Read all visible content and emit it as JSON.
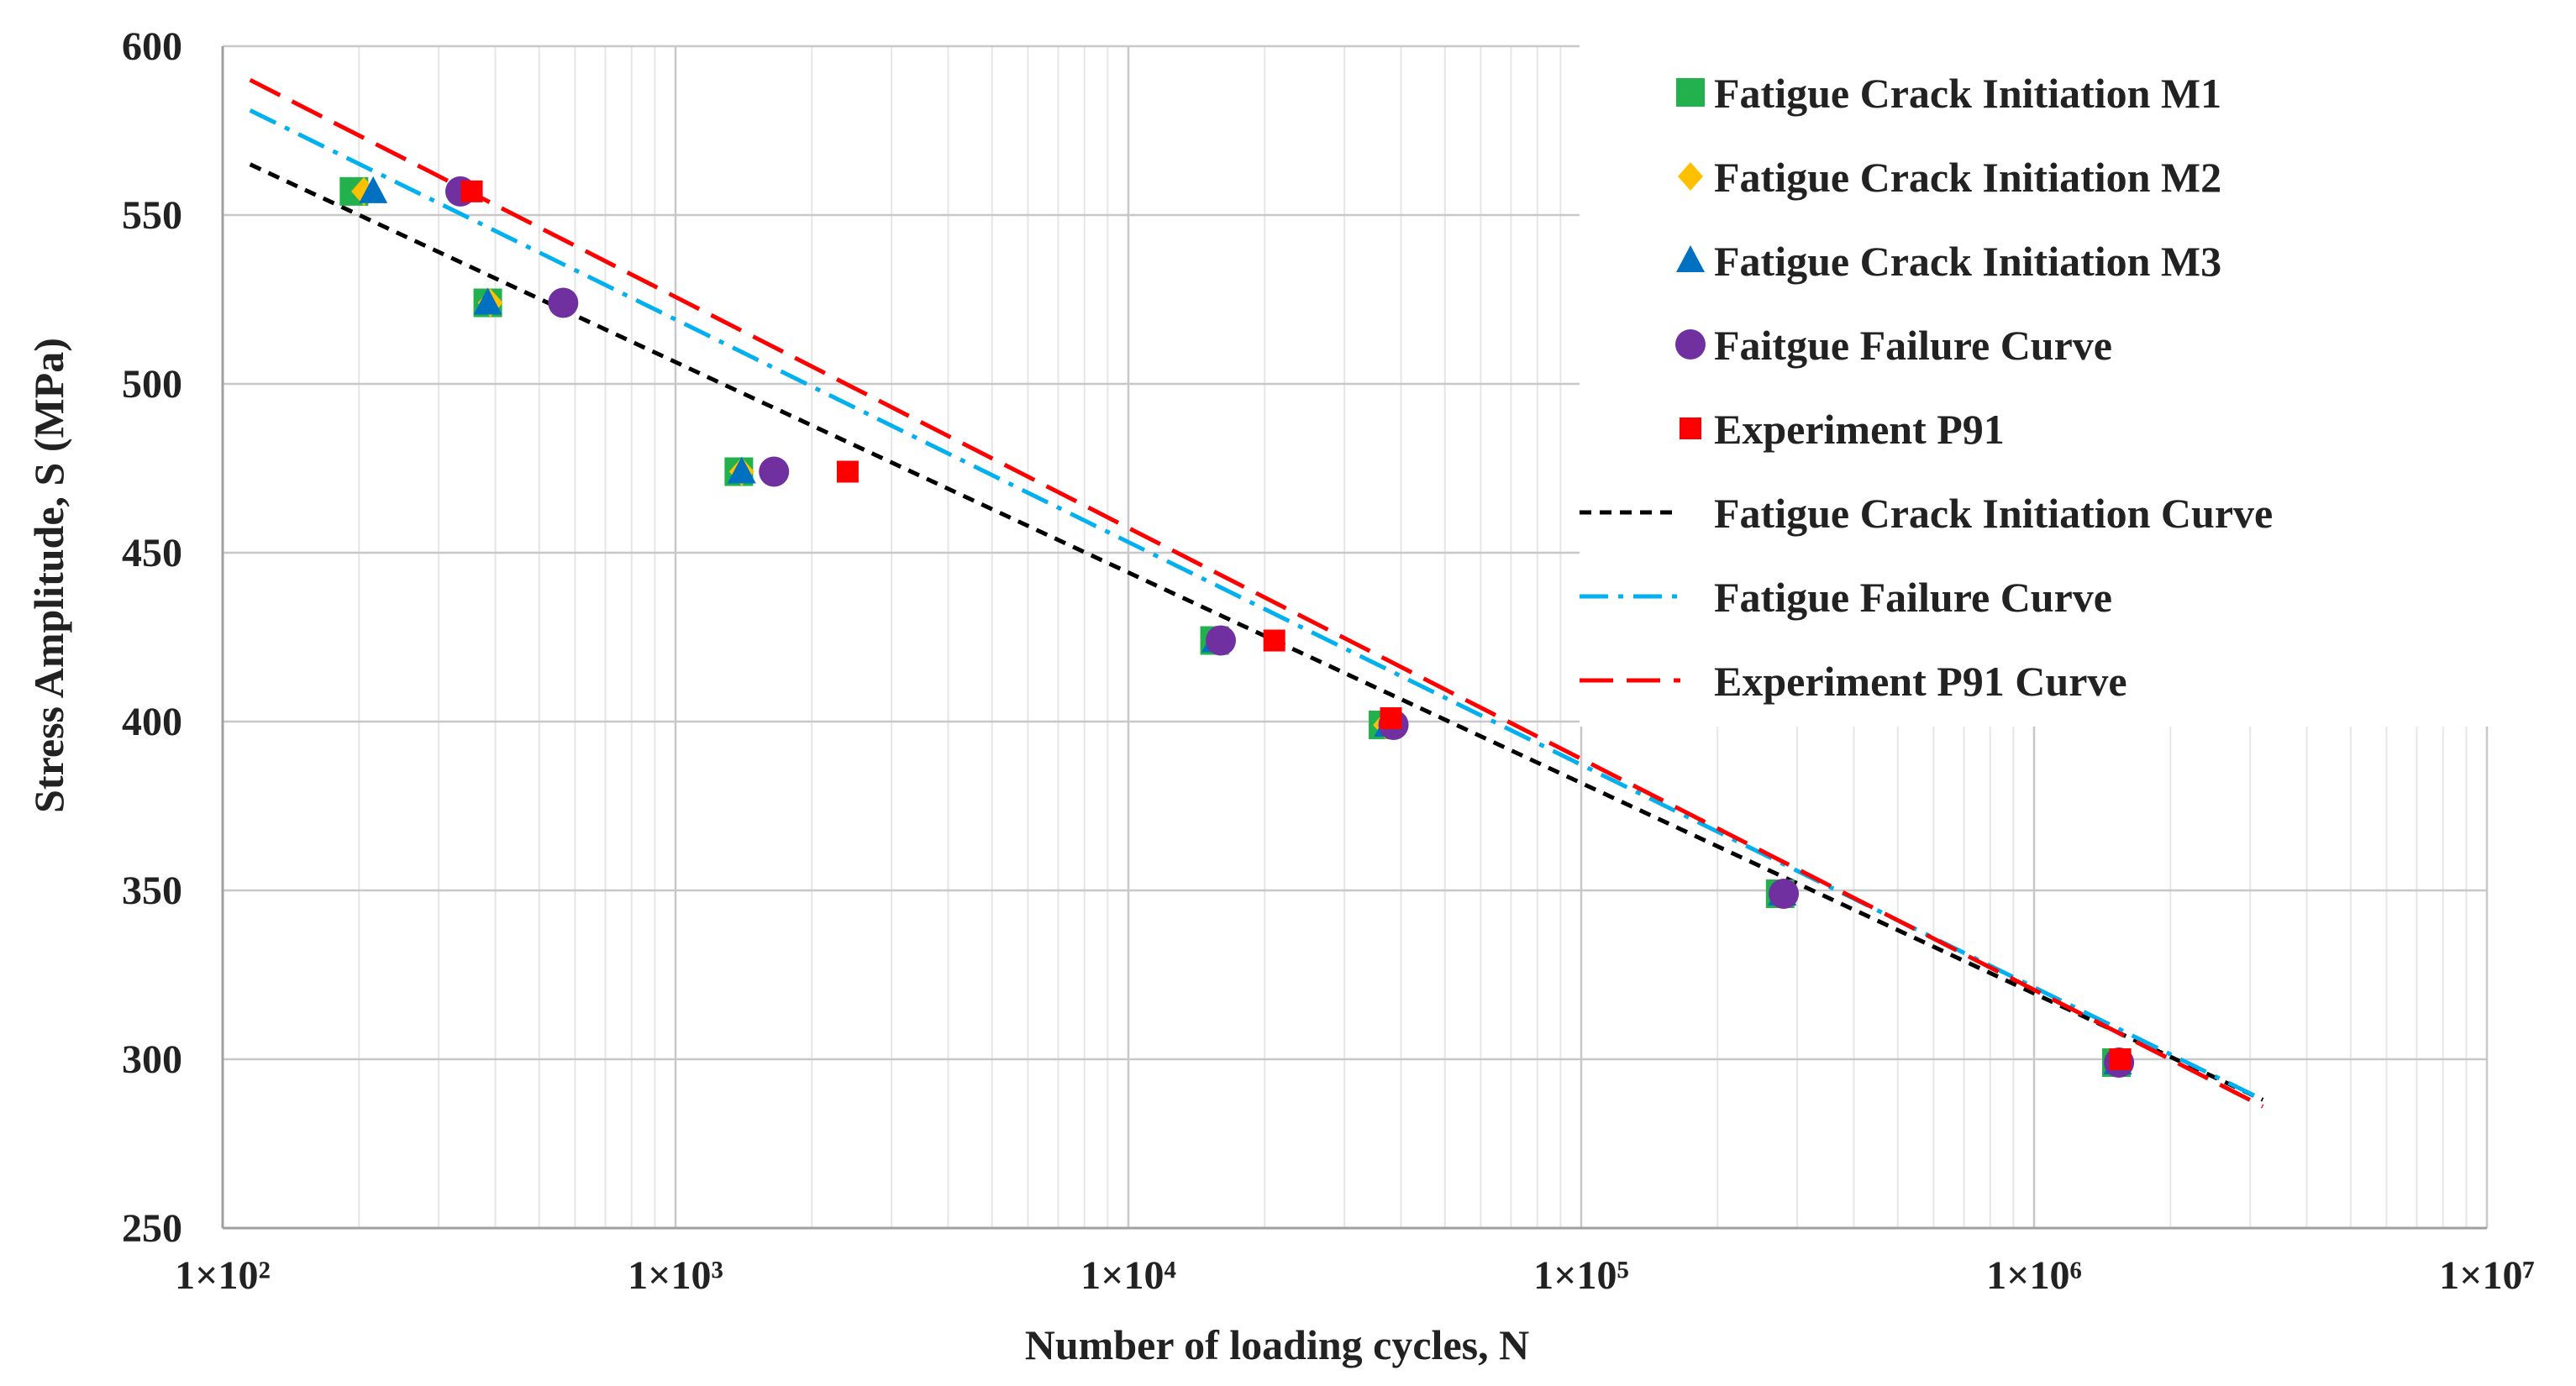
{
  "chart_data": {
    "type": "scatter",
    "title": "",
    "xlabel": "Number of loading cycles, N",
    "ylabel": "Stress Amplitude, S (MPa)",
    "xscale": "log",
    "xlim": [
      100,
      10000000
    ],
    "ylim": [
      250,
      600
    ],
    "grid": true,
    "legend_position": "top-right",
    "x_tick_labels": [
      "1×10²",
      "1×10³",
      "1×10⁴",
      "1×10⁵",
      "1×10⁶",
      "1×10⁷"
    ],
    "y_tick_labels": [
      "250",
      "300",
      "350",
      "400",
      "450",
      "500",
      "550",
      "600"
    ],
    "series": [
      {
        "name": "Fatigue Crack Initiation M1",
        "kind": "points",
        "marker": "square",
        "color": "#22b14c",
        "points": [
          [
            195,
            557
          ],
          [
            385,
            524
          ],
          [
            1380,
            474
          ],
          [
            15500,
            424
          ],
          [
            36500,
            399
          ],
          [
            275000,
            349
          ],
          [
            1520000,
            299
          ]
        ]
      },
      {
        "name": "Fatigue Crack Initiation M2",
        "kind": "points",
        "marker": "diamond",
        "color": "#ffc000",
        "points": [
          [
            205,
            557
          ],
          [
            390,
            524
          ],
          [
            1400,
            474
          ],
          [
            15800,
            424
          ],
          [
            37000,
            399
          ],
          [
            280000,
            349
          ],
          [
            1540000,
            299
          ]
        ]
      },
      {
        "name": "Fatigue Crack Initiation M3",
        "kind": "points",
        "marker": "triangle",
        "color": "#0070c0",
        "points": [
          [
            215,
            557
          ],
          [
            385,
            524
          ],
          [
            1400,
            474
          ],
          [
            15600,
            424
          ],
          [
            37500,
            399
          ],
          [
            278000,
            349
          ],
          [
            1530000,
            299
          ]
        ]
      },
      {
        "name": "Faitgue Failure Curve",
        "kind": "points",
        "marker": "circle",
        "color": "#7030a0",
        "points": [
          [
            335,
            557
          ],
          [
            565,
            524
          ],
          [
            1650,
            474
          ],
          [
            16000,
            424
          ],
          [
            38500,
            399
          ],
          [
            280000,
            349
          ],
          [
            1540000,
            299
          ]
        ]
      },
      {
        "name": "Experiment P91",
        "kind": "points",
        "marker": "square-small",
        "color": "#ff0000",
        "points": [
          [
            355,
            557
          ],
          [
            2400,
            474
          ],
          [
            21000,
            424
          ],
          [
            38000,
            401
          ],
          [
            1550000,
            300
          ]
        ]
      },
      {
        "name": "Fatigue Crack Initiation Curve",
        "kind": "line",
        "dash": "short-dash",
        "color": "#000000",
        "points": [
          [
            115,
            565
          ],
          [
            3200000,
            288
          ]
        ]
      },
      {
        "name": "Fatigue Failure Curve",
        "kind": "line",
        "dash": "dash-dot",
        "color": "#00b0f0",
        "points": [
          [
            115,
            581
          ],
          [
            3200000,
            288
          ]
        ]
      },
      {
        "name": "Experiment P91 Curve",
        "kind": "line",
        "dash": "long-dash",
        "color": "#ff0000",
        "points": [
          [
            115,
            590
          ],
          [
            3200000,
            286
          ]
        ]
      }
    ]
  }
}
